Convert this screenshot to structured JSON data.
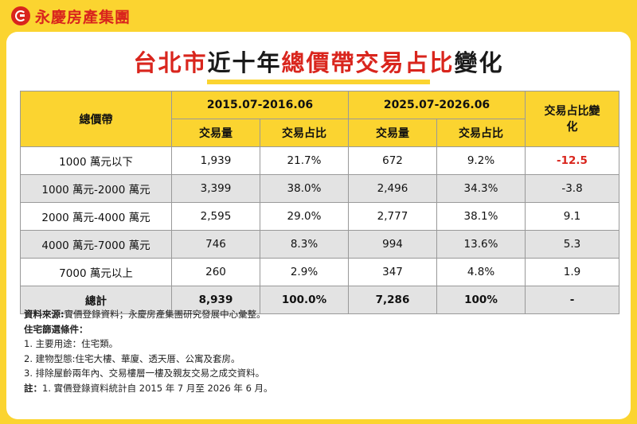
{
  "brand": {
    "name": "永慶房產集團"
  },
  "title": {
    "part1": "台北市",
    "part2": "近十年",
    "part3": "總價帶交易占比",
    "part4": "變化"
  },
  "table": {
    "header": {
      "price_band": "總價帶",
      "period1": "2015.07-2016.06",
      "period2": "2025.07-2026.06",
      "change": "交易占比變化",
      "volume": "交易量",
      "share": "交易占比"
    },
    "rows": [
      {
        "band": "1000 萬元以下",
        "v1": "1,939",
        "s1": "21.7%",
        "v2": "672",
        "s2": "9.2%",
        "chg": "-12.5"
      },
      {
        "band": "1000 萬元-2000 萬元",
        "v1": "3,399",
        "s1": "38.0%",
        "v2": "2,496",
        "s2": "34.3%",
        "chg": "-3.8"
      },
      {
        "band": "2000 萬元-4000 萬元",
        "v1": "2,595",
        "s1": "29.0%",
        "v2": "2,777",
        "s2": "38.1%",
        "chg": "9.1"
      },
      {
        "band": "4000 萬元-7000 萬元",
        "v1": "746",
        "s1": "8.3%",
        "v2": "994",
        "s2": "13.6%",
        "chg": "5.3"
      },
      {
        "band": "7000 萬元以上",
        "v1": "260",
        "s1": "2.9%",
        "v2": "347",
        "s2": "4.8%",
        "chg": "1.9"
      }
    ],
    "total": {
      "band": "總計",
      "v1": "8,939",
      "s1": "100.0%",
      "v2": "7,286",
      "s2": "100%",
      "chg": "-"
    }
  },
  "notes": {
    "source_label": "資料來源:",
    "source_text": "實價登錄資料；永慶房產集團研究發展中心彙整。",
    "criteria_label": "住宅篩選條件：",
    "c1": "1. 主要用途：住宅類。",
    "c2": "2. 建物型態:住宅大樓、華廈、透天厝、公寓及套房。",
    "c3": "3. 排除屋齡兩年內、交易樓層一樓及親友交易之成交資料。",
    "note_label": "註：",
    "note_text": "1. 實價登錄資料統計自 2015 年 7 月至 2026 年 6 月。"
  },
  "colors": {
    "accent_yellow": "#fbd430",
    "brand_red": "#d9251d",
    "row_gray": "#e3e3e3"
  }
}
